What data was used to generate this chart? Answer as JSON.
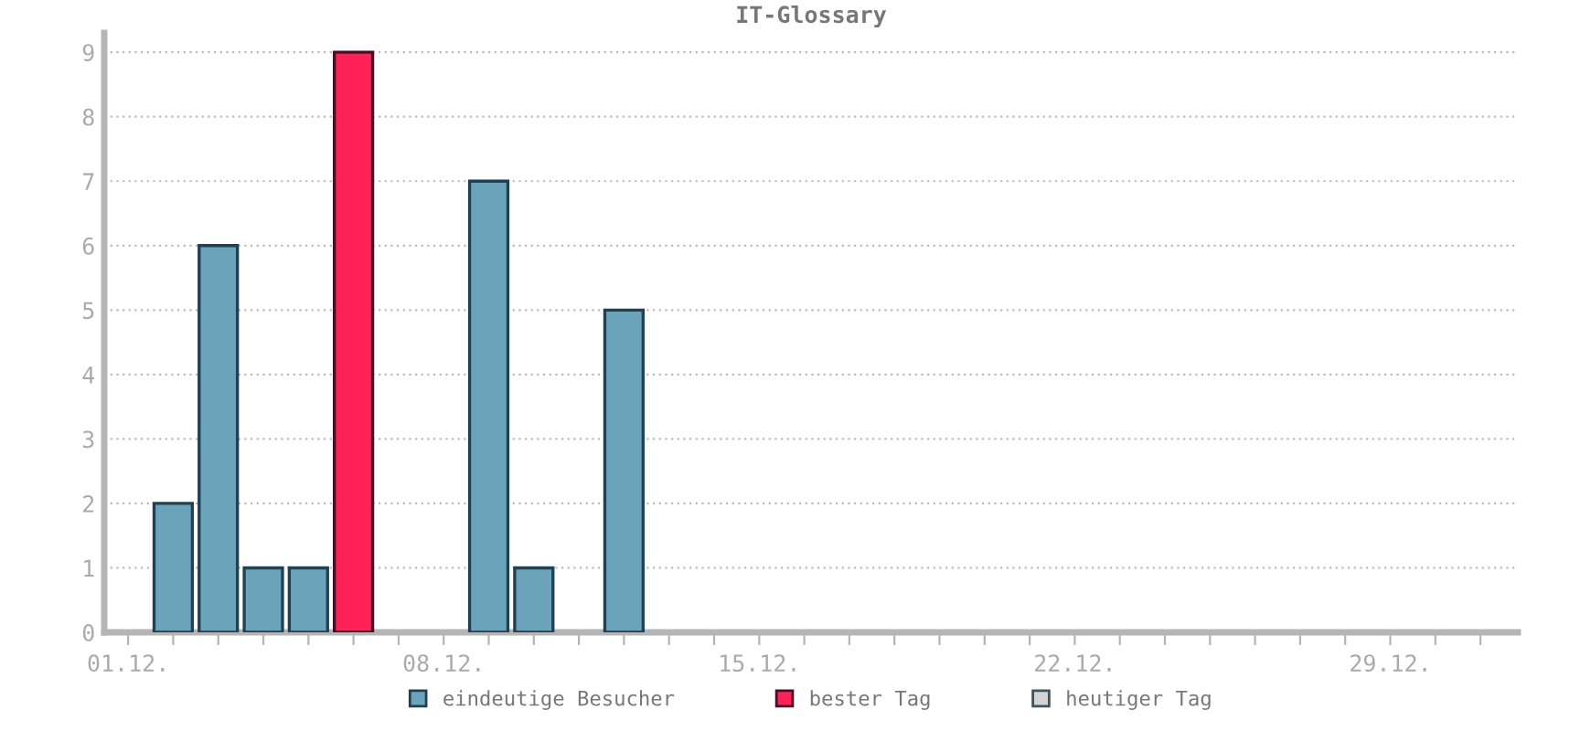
{
  "chart_data": {
    "type": "bar",
    "title": "IT-Glossary",
    "categories": [
      "01.12.",
      null,
      null,
      null,
      null,
      null,
      null,
      "08.12.",
      null,
      null,
      null,
      null,
      null,
      null,
      "15.12.",
      null,
      null,
      null,
      null,
      null,
      null,
      "22.12.",
      null,
      null,
      null,
      null,
      null,
      null,
      "29.12.",
      null,
      null
    ],
    "series": [
      {
        "name": "eindeutige Besucher",
        "color": "#6ba3bb",
        "values": [
          null,
          2,
          6,
          1,
          1,
          null,
          null,
          null,
          7,
          1,
          null,
          5,
          null,
          null,
          null,
          null,
          null,
          null,
          null,
          null,
          null,
          null,
          null,
          null,
          null,
          null,
          null,
          null,
          null,
          null,
          null
        ]
      },
      {
        "name": "bester Tag",
        "color": "#ff2257",
        "values": [
          null,
          null,
          null,
          null,
          null,
          9,
          null,
          null,
          null,
          null,
          null,
          null,
          null,
          null,
          null,
          null,
          null,
          null,
          null,
          null,
          null,
          null,
          null,
          null,
          null,
          null,
          null,
          null,
          null,
          null,
          null
        ]
      },
      {
        "name": "heutiger Tag",
        "color": "#d3d3d3",
        "values": [
          null,
          null,
          null,
          null,
          null,
          null,
          null,
          null,
          null,
          null,
          null,
          null,
          null,
          null,
          null,
          null,
          null,
          null,
          null,
          null,
          null,
          null,
          null,
          null,
          null,
          null,
          null,
          null,
          null,
          null,
          null
        ]
      }
    ],
    "ylim": [
      0,
      9.3
    ],
    "yticks": [
      0,
      1,
      2,
      3,
      4,
      5,
      6,
      7,
      8,
      9
    ],
    "grid": "y",
    "legend": "bottom"
  }
}
